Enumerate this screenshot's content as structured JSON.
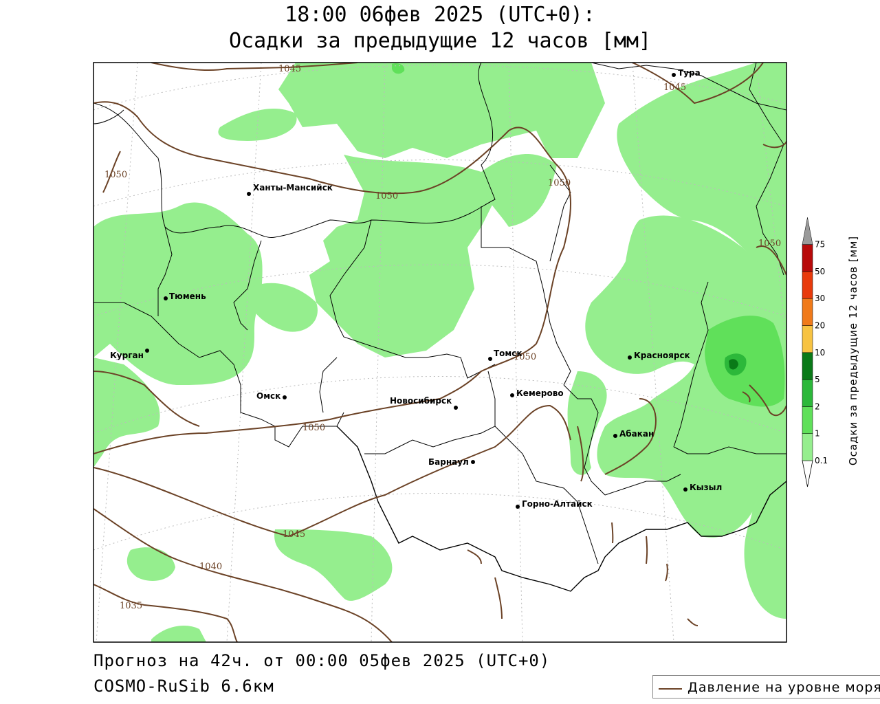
{
  "header": {
    "line1": "18:00 06фев 2025 (UTC+0):",
    "line2": "Осадки за предыдущие 12 часов [мм]"
  },
  "footer": {
    "forecast": "Прогноз на 42ч. от 00:00 05фев 2025 (UTC+0)",
    "model": "COSMO-RuSib 6.6км"
  },
  "legend": {
    "pressure_label": "Давление на уровне моря",
    "pressure_color": "#6b4226"
  },
  "colorbar": {
    "title": "Осадки за предыдущие 12 часов [мм]",
    "levels": [
      {
        "label": "0.1",
        "color": "#95ee8e"
      },
      {
        "label": "1",
        "color": "#60e05a"
      },
      {
        "label": "2",
        "color": "#2cb83a"
      },
      {
        "label": "5",
        "color": "#0a7a18"
      },
      {
        "label": "10",
        "color": "#f7c342"
      },
      {
        "label": "20",
        "color": "#f07a1a"
      },
      {
        "label": "30",
        "color": "#e83a0c"
      },
      {
        "label": "50",
        "color": "#b80a0a"
      },
      {
        "label": "75",
        "color": "#9a9a9a"
      }
    ]
  },
  "cities": [
    {
      "name": "Тура"
    },
    {
      "name": "Ханты-Мансийск"
    },
    {
      "name": "Тюмень"
    },
    {
      "name": "Курган"
    },
    {
      "name": "Омск"
    },
    {
      "name": "Новосибирск"
    },
    {
      "name": "Томск"
    },
    {
      "name": "Кемерово"
    },
    {
      "name": "Красноярск"
    },
    {
      "name": "Абакан"
    },
    {
      "name": "Барнаул"
    },
    {
      "name": "Горно-Алтайск"
    },
    {
      "name": "Кызыл"
    }
  ],
  "isobar_labels": [
    "1045",
    "1045",
    "1050",
    "1050",
    "1050",
    "1050",
    "1050",
    "1050",
    "1045",
    "1040",
    "1035"
  ]
}
